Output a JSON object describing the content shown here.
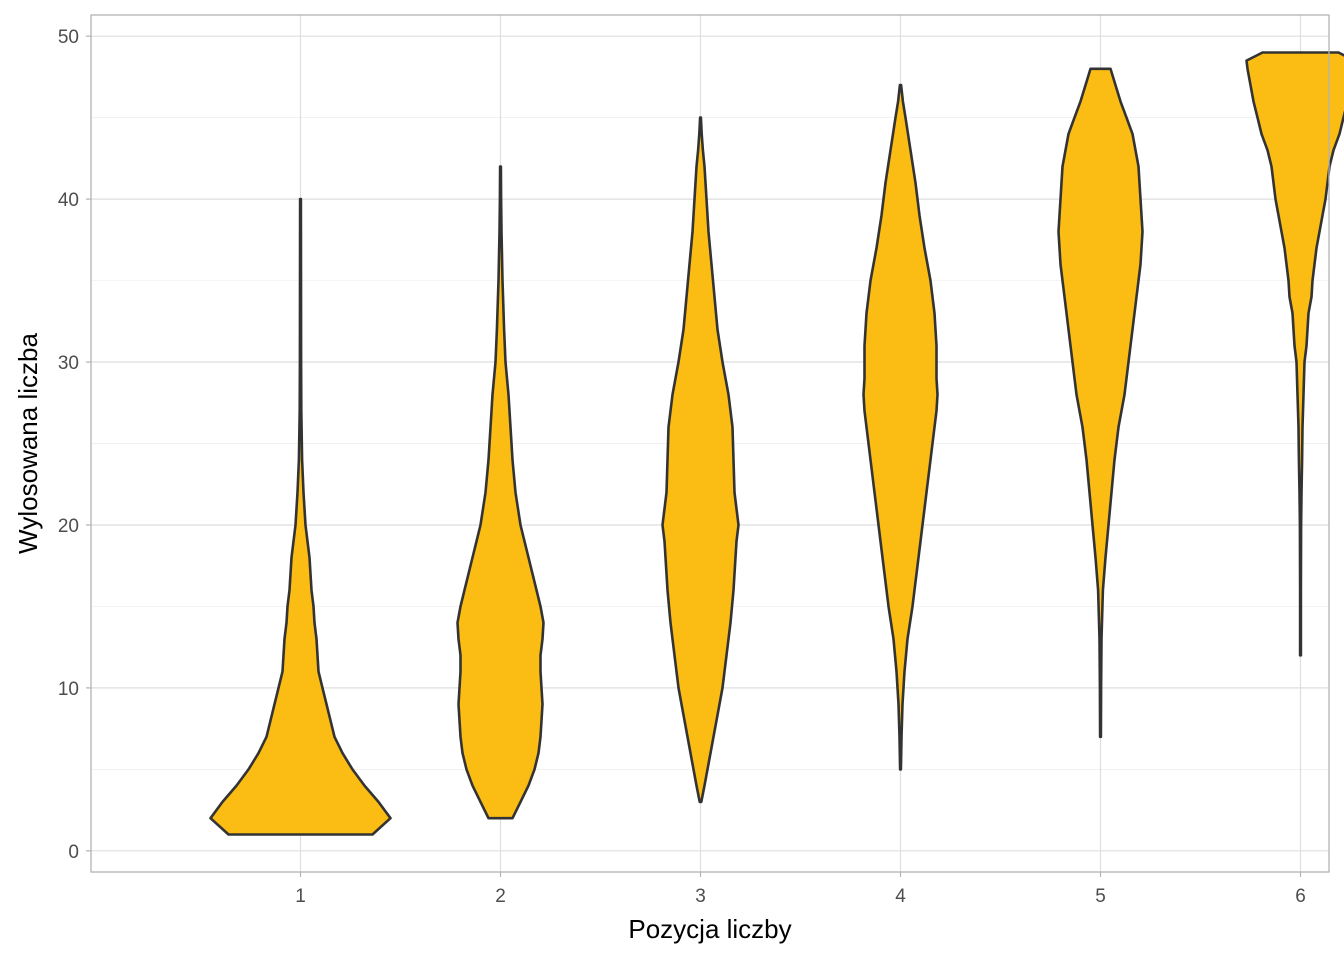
{
  "chart_data": {
    "type": "violin",
    "xlabel": "Pozycja liczby",
    "ylabel": "Wylosowana liczba",
    "categories": [
      "1",
      "2",
      "3",
      "4",
      "5",
      "6"
    ],
    "y_ticks": [
      "0",
      "10",
      "20",
      "30",
      "40",
      "50"
    ],
    "ylim": [
      -1.3,
      51.3
    ],
    "grid": true,
    "fill_color": "#FBBC13",
    "outline_color": "#333333",
    "series": [
      {
        "category": "1",
        "min": 1,
        "max": 40,
        "profile": [
          [
            1,
            0.36
          ],
          [
            2,
            0.45
          ],
          [
            3,
            0.39
          ],
          [
            4,
            0.32
          ],
          [
            5,
            0.26
          ],
          [
            6,
            0.21
          ],
          [
            7,
            0.17
          ],
          [
            8,
            0.15
          ],
          [
            9,
            0.13
          ],
          [
            10,
            0.11
          ],
          [
            11,
            0.09
          ],
          [
            12,
            0.085
          ],
          [
            13,
            0.08
          ],
          [
            14,
            0.07
          ],
          [
            15,
            0.065
          ],
          [
            16,
            0.055
          ],
          [
            17,
            0.05
          ],
          [
            18,
            0.045
          ],
          [
            19,
            0.035
          ],
          [
            20,
            0.025
          ],
          [
            21,
            0.02
          ],
          [
            22,
            0.015
          ],
          [
            24,
            0.008
          ],
          [
            27,
            0.004
          ],
          [
            30,
            0.003
          ],
          [
            35,
            0.0025
          ],
          [
            40,
            0.002
          ]
        ]
      },
      {
        "category": "2",
        "min": 2,
        "max": 42,
        "profile": [
          [
            2,
            0.06
          ],
          [
            3,
            0.1
          ],
          [
            4,
            0.14
          ],
          [
            5,
            0.17
          ],
          [
            6,
            0.19
          ],
          [
            7,
            0.2
          ],
          [
            8,
            0.205
          ],
          [
            9,
            0.21
          ],
          [
            10,
            0.205
          ],
          [
            11,
            0.2
          ],
          [
            12,
            0.2
          ],
          [
            13,
            0.21
          ],
          [
            14,
            0.215
          ],
          [
            15,
            0.2
          ],
          [
            16,
            0.18
          ],
          [
            17,
            0.16
          ],
          [
            18,
            0.14
          ],
          [
            19,
            0.12
          ],
          [
            20,
            0.1
          ],
          [
            22,
            0.075
          ],
          [
            24,
            0.06
          ],
          [
            26,
            0.05
          ],
          [
            28,
            0.04
          ],
          [
            30,
            0.025
          ],
          [
            32,
            0.018
          ],
          [
            35,
            0.01
          ],
          [
            38,
            0.005
          ],
          [
            40,
            0.003
          ],
          [
            42,
            0.002
          ]
        ]
      },
      {
        "category": "3",
        "min": 3,
        "max": 45,
        "profile": [
          [
            3,
            0.004
          ],
          [
            4,
            0.02
          ],
          [
            6,
            0.05
          ],
          [
            8,
            0.08
          ],
          [
            10,
            0.11
          ],
          [
            12,
            0.13
          ],
          [
            14,
            0.15
          ],
          [
            16,
            0.165
          ],
          [
            17,
            0.17
          ],
          [
            19,
            0.18
          ],
          [
            20,
            0.19
          ],
          [
            21,
            0.18
          ],
          [
            22,
            0.17
          ],
          [
            24,
            0.165
          ],
          [
            26,
            0.16
          ],
          [
            28,
            0.14
          ],
          [
            30,
            0.11
          ],
          [
            32,
            0.085
          ],
          [
            34,
            0.07
          ],
          [
            36,
            0.055
          ],
          [
            38,
            0.04
          ],
          [
            40,
            0.03
          ],
          [
            42,
            0.02
          ],
          [
            43,
            0.012
          ],
          [
            44,
            0.006
          ],
          [
            45,
            0.002
          ]
        ]
      },
      {
        "category": "4",
        "min": 5,
        "max": 47,
        "profile": [
          [
            5,
            0.002
          ],
          [
            7,
            0.005
          ],
          [
            9,
            0.01
          ],
          [
            11,
            0.02
          ],
          [
            13,
            0.035
          ],
          [
            15,
            0.06
          ],
          [
            17,
            0.08
          ],
          [
            19,
            0.1
          ],
          [
            21,
            0.12
          ],
          [
            23,
            0.14
          ],
          [
            25,
            0.16
          ],
          [
            27,
            0.18
          ],
          [
            28,
            0.185
          ],
          [
            29,
            0.18
          ],
          [
            31,
            0.18
          ],
          [
            33,
            0.17
          ],
          [
            35,
            0.15
          ],
          [
            37,
            0.12
          ],
          [
            39,
            0.095
          ],
          [
            41,
            0.075
          ],
          [
            43,
            0.05
          ],
          [
            45,
            0.025
          ],
          [
            46,
            0.012
          ],
          [
            47,
            0.003
          ]
        ]
      },
      {
        "category": "5",
        "min": 7,
        "max": 48,
        "profile": [
          [
            7,
            0.002
          ],
          [
            10,
            0.003
          ],
          [
            13,
            0.005
          ],
          [
            16,
            0.012
          ],
          [
            18,
            0.025
          ],
          [
            20,
            0.04
          ],
          [
            22,
            0.055
          ],
          [
            24,
            0.07
          ],
          [
            26,
            0.09
          ],
          [
            28,
            0.12
          ],
          [
            30,
            0.14
          ],
          [
            32,
            0.16
          ],
          [
            34,
            0.18
          ],
          [
            36,
            0.2
          ],
          [
            38,
            0.21
          ],
          [
            40,
            0.2
          ],
          [
            42,
            0.19
          ],
          [
            44,
            0.16
          ],
          [
            45,
            0.13
          ],
          [
            46,
            0.1
          ],
          [
            47,
            0.075
          ],
          [
            48,
            0.05
          ]
        ]
      },
      {
        "category": "6",
        "min": 12,
        "max": 49,
        "profile": [
          [
            12,
            0.002
          ],
          [
            16,
            0.002
          ],
          [
            20,
            0.003
          ],
          [
            22,
            0.005
          ],
          [
            24,
            0.008
          ],
          [
            26,
            0.01
          ],
          [
            28,
            0.015
          ],
          [
            30,
            0.02
          ],
          [
            31,
            0.03
          ],
          [
            32,
            0.035
          ],
          [
            33,
            0.04
          ],
          [
            34,
            0.055
          ],
          [
            35,
            0.06
          ],
          [
            36,
            0.07
          ],
          [
            37,
            0.08
          ],
          [
            38,
            0.095
          ],
          [
            39,
            0.11
          ],
          [
            40,
            0.125
          ],
          [
            41,
            0.135
          ],
          [
            42,
            0.145
          ],
          [
            43,
            0.165
          ],
          [
            44,
            0.195
          ],
          [
            45,
            0.215
          ],
          [
            46,
            0.235
          ],
          [
            47,
            0.25
          ],
          [
            48,
            0.265
          ],
          [
            48.5,
            0.27
          ],
          [
            49,
            0.19
          ]
        ]
      }
    ]
  }
}
